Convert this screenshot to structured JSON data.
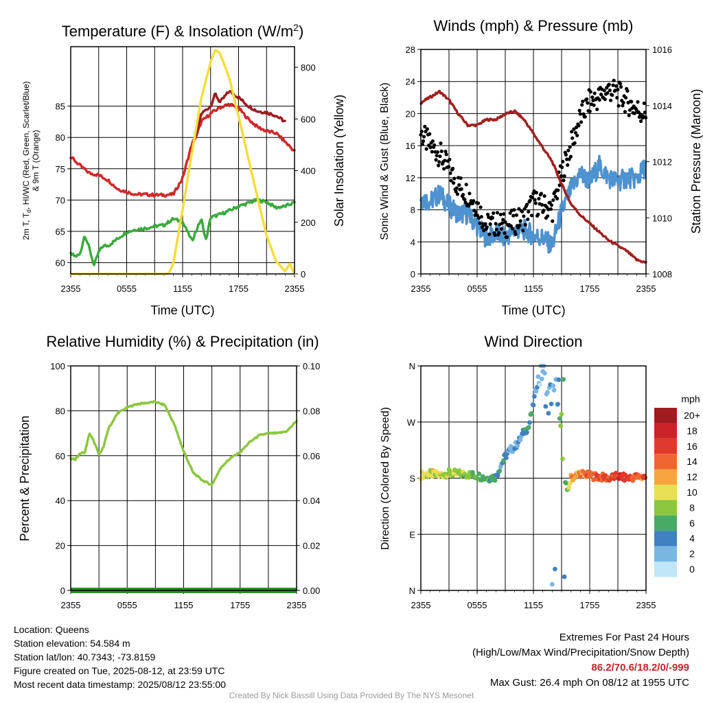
{
  "chart_data": [
    {
      "type": "line",
      "title": "Temperature (F) & Insolation (W/m²)",
      "xlabel": "Time (UTC)",
      "ylabel_left": "2m T, Td, HI/WC (Red, Green, Scarlet/Blue) & 9m T (Orange)",
      "ylabel_right": "Solar Insolation (Yellow)",
      "x_ticks": [
        "2355",
        "0555",
        "1155",
        "1755",
        "2355"
      ],
      "ylim": [
        58.2,
        94.5
      ],
      "y_ticks": [
        60,
        65,
        70,
        75,
        80,
        85
      ],
      "y2lim": [
        0,
        880
      ],
      "y2_ticks": [
        0,
        200,
        400,
        600,
        800
      ],
      "series": [
        {
          "name": "2m T",
          "color": "#d0282a",
          "x": [
            0,
            1,
            2,
            3,
            4,
            5,
            6,
            7,
            8,
            9,
            10,
            11,
            12,
            13,
            13.5,
            14,
            15,
            16,
            17,
            18,
            19,
            20,
            21,
            22,
            23,
            24
          ],
          "values": [
            76.9,
            75.5,
            74.3,
            74.0,
            73.2,
            71.8,
            71.3,
            70.9,
            70.9,
            70.8,
            70.8,
            70.9,
            73.5,
            79.0,
            80.3,
            82.5,
            83.8,
            84.8,
            85.3,
            84.7,
            83.0,
            81.7,
            81.0,
            80.7,
            79.3,
            77.8
          ]
        },
        {
          "name": "Td",
          "color": "#3aaa3c",
          "x": [
            0,
            0.5,
            1,
            1.5,
            2,
            2.5,
            3,
            3.5,
            4,
            5,
            6,
            7,
            8,
            9,
            10,
            11,
            12,
            13,
            14,
            14.5,
            15,
            16,
            17,
            18,
            19,
            20,
            21,
            22,
            23,
            24
          ],
          "values": [
            61.4,
            61.0,
            61.3,
            64.5,
            62.3,
            59.5,
            61.7,
            62.7,
            62.7,
            63.8,
            64.9,
            65.3,
            65.5,
            65.8,
            66.0,
            67.0,
            66.5,
            63.5,
            67.0,
            63.5,
            67.2,
            67.7,
            68.3,
            69.0,
            69.5,
            70.0,
            69.7,
            68.8,
            69.0,
            69.6
          ]
        },
        {
          "name": "HI",
          "color": "#9e1b1e",
          "x": [
            13.5,
            14,
            15,
            15.5,
            16,
            17,
            18,
            19,
            20,
            21,
            22,
            23
          ],
          "values": [
            80.3,
            83.8,
            85.0,
            87.0,
            85.6,
            87.4,
            86.4,
            85.1,
            84.2,
            84.0,
            83.5,
            82.5
          ]
        },
        {
          "name": "Solar Insolation",
          "color": "#f5de3a",
          "axis": "right",
          "x": [
            0,
            1,
            2,
            3,
            4,
            5,
            6,
            7,
            8,
            9,
            10,
            10.5,
            11,
            12,
            13,
            14,
            15,
            15.5,
            16,
            17,
            18,
            19,
            20,
            21,
            22,
            23,
            23.5,
            24
          ],
          "values": [
            0,
            0,
            0,
            0,
            0,
            0,
            0,
            0,
            0,
            0,
            0,
            2,
            40,
            250,
            470,
            680,
            820,
            868,
            855,
            760,
            610,
            455,
            300,
            150,
            50,
            10,
            40,
            0
          ]
        }
      ]
    },
    {
      "type": "line",
      "title": "Winds (mph) & Pressure (mb)",
      "xlabel": "Time (UTC)",
      "ylabel_left": "Sonic Wind & Gust (Blue, Black)",
      "ylabel_right": "Station Pressure (Maroon)",
      "x_ticks": [
        "2355",
        "0555",
        "1155",
        "1755",
        "2355"
      ],
      "ylim": [
        0,
        28
      ],
      "y_ticks": [
        0,
        4,
        8,
        12,
        16,
        20,
        24,
        28
      ],
      "y2lim": [
        1008,
        1016
      ],
      "y2_ticks": [
        1008,
        1010,
        1012,
        1014,
        1016
      ],
      "series": [
        {
          "name": "Sonic Wind",
          "color": "#4e92cf",
          "x": [
            0,
            1,
            2,
            3,
            4,
            5,
            6,
            7,
            8,
            9,
            10,
            11,
            12,
            13,
            14,
            15,
            16,
            17,
            18,
            19,
            20,
            21,
            22,
            23,
            24
          ],
          "values": [
            9.5,
            9.0,
            10.0,
            8.5,
            7.5,
            7.5,
            6.0,
            4.5,
            5.0,
            4.5,
            5.5,
            5.5,
            4.8,
            4.5,
            3.5,
            7.8,
            10.5,
            12.5,
            11.5,
            13.5,
            12.0,
            11.5,
            12.0,
            11.8,
            13.5
          ]
        },
        {
          "name": "Gust",
          "color": "#000000",
          "x": [
            0,
            1,
            2,
            3,
            4,
            5,
            6,
            7,
            8,
            9,
            10,
            11,
            12,
            13,
            14,
            15,
            16,
            17,
            18,
            19,
            20,
            21,
            22,
            23,
            24
          ],
          "values": [
            17.5,
            16.0,
            15.0,
            13.0,
            11.0,
            10.0,
            8.5,
            6.0,
            6.3,
            6.0,
            6.5,
            7.0,
            9.0,
            8.5,
            8.0,
            12.5,
            16.0,
            19.5,
            21.5,
            22.0,
            23.0,
            22.5,
            21.5,
            20.5,
            20.0
          ]
        },
        {
          "name": "Station Pressure",
          "color": "#a0201e",
          "axis": "right",
          "x": [
            0,
            1,
            2,
            3,
            4,
            5,
            6,
            7,
            8,
            9,
            10,
            11,
            12,
            13,
            14,
            15,
            16,
            17,
            18,
            19,
            20,
            21,
            22,
            23,
            24
          ],
          "values": [
            1014.1,
            1014.3,
            1014.5,
            1014.2,
            1013.7,
            1013.3,
            1013.3,
            1013.5,
            1013.5,
            1013.7,
            1013.8,
            1013.5,
            1013.0,
            1012.5,
            1012.0,
            1011.2,
            1010.5,
            1010.1,
            1009.8,
            1009.5,
            1009.2,
            1009.0,
            1008.8,
            1008.5,
            1008.4
          ]
        }
      ]
    },
    {
      "type": "line",
      "title": "Relative Humidity (%) & Precipitation (in)",
      "ylabel_left": "Percent & Precipitation",
      "x_ticks": [
        "2355",
        "0555",
        "1155",
        "1755",
        "2355"
      ],
      "ylim": [
        0,
        100
      ],
      "y_ticks": [
        0,
        20,
        40,
        60,
        80,
        100
      ],
      "y2lim": [
        0,
        0.1
      ],
      "y2_ticks": [
        "0.00",
        "0.02",
        "0.04",
        "0.06",
        "0.08",
        "0.10"
      ],
      "series": [
        {
          "name": "Relative Humidity",
          "color": "#8cc63f",
          "x": [
            0,
            0.5,
            1,
            1.5,
            2,
            2.5,
            3,
            3.5,
            4,
            5,
            6,
            7,
            8,
            9,
            10,
            11,
            12,
            13,
            14,
            15,
            16,
            17,
            18,
            19,
            20,
            21,
            22,
            23,
            24
          ],
          "values": [
            58.5,
            58.5,
            61.0,
            61.5,
            70.0,
            66.0,
            60.5,
            64.0,
            72.0,
            79.0,
            81.5,
            83.0,
            83.5,
            84.0,
            82.5,
            74.0,
            62.0,
            52.5,
            49.0,
            47.0,
            55.0,
            59.0,
            61.5,
            66.0,
            69.0,
            70.0,
            70.0,
            71.0,
            75.5
          ]
        },
        {
          "name": "Precipitation",
          "color": "#2e8b2e",
          "x": [
            0,
            24
          ],
          "values": [
            0,
            0
          ]
        }
      ]
    },
    {
      "type": "scatter",
      "title": "Wind Direction",
      "ylabel_left": "Direction (Colored By Speed)",
      "x_ticks": [
        "2355",
        "0555",
        "1155",
        "1755",
        "2355"
      ],
      "y_ticks": [
        "N",
        "E",
        "S",
        "W",
        "N"
      ],
      "ylim": [
        0,
        360
      ],
      "legend_title": "mph",
      "legend_labels": [
        "20+",
        "18",
        "16",
        "14",
        "12",
        "10",
        "8",
        "6",
        "4",
        "2",
        "0"
      ],
      "legend_colors": [
        "#a01c1e",
        "#c92228",
        "#e03a2d",
        "#ef6630",
        "#f7a53e",
        "#e8df52",
        "#8cc63f",
        "#4aa964",
        "#3f82c1",
        "#7ab6e2",
        "#bfe5f7"
      ],
      "x": [
        0,
        1,
        2,
        3,
        4,
        5,
        6,
        7,
        8,
        8.5,
        9,
        9.5,
        10,
        10.5,
        11,
        11.5,
        12,
        12.5,
        13,
        13.5,
        14,
        14.5,
        15,
        15.5,
        16,
        16.5,
        17,
        18,
        19,
        20,
        21,
        22,
        23,
        24
      ],
      "values": [
        185,
        187,
        185,
        188,
        187,
        186,
        184,
        180,
        182,
        200,
        215,
        225,
        230,
        240,
        255,
        262,
        300,
        340,
        355,
        300,
        320,
        285,
        260,
        150,
        180,
        185,
        188,
        184,
        182,
        180,
        183,
        180,
        182,
        182
      ],
      "speeds": [
        10,
        10,
        9,
        8,
        9,
        8,
        7,
        6,
        5,
        4,
        4,
        3,
        3,
        3,
        4,
        6,
        3,
        2,
        1,
        3,
        2,
        2,
        8,
        4,
        13,
        12,
        13,
        14,
        15,
        15,
        16,
        16,
        14,
        14
      ]
    }
  ],
  "info": {
    "location": "Location: Queens",
    "elevation": "Station elevation: 54.584 m",
    "latlon": "Station lat/lon: 40.7343; -73.8159",
    "created": "Figure created on Tue, 2025-08-12, at 23:59 UTC",
    "recent": "Most recent data timestamp: 2025/08/12 23:55:00"
  },
  "extremes": {
    "title": "Extremes For Past 24 Hours",
    "subtitle": "(High/Low/Max Wind/Precipitation/Snow Depth)",
    "values": "86.2/70.6/18.2/0/-999",
    "gust": "Max Gust: 26.4 mph On 08/12 at 1955 UTC"
  },
  "credit": "Created By Nick Bassill Using Data Provided By The NYS Mesonet"
}
